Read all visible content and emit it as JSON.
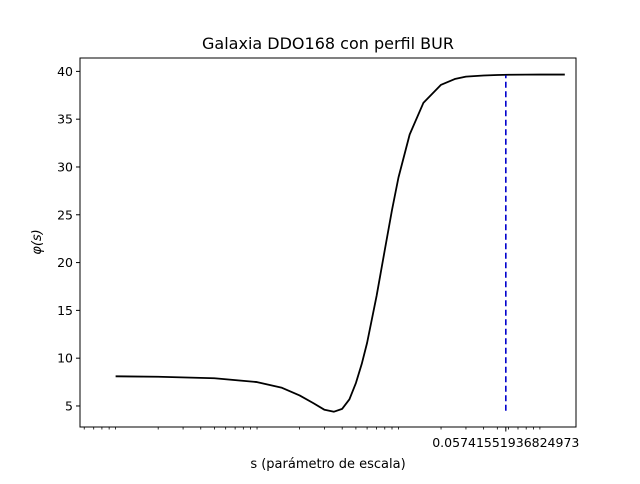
{
  "chart_data": {
    "type": "line",
    "title": "Galaxia DDO168 con perfil BUR",
    "xlabel": "s (parámetro de escala)",
    "ylabel": "φ(s)",
    "xscale": "log",
    "grid": false,
    "legend": "none",
    "xlim": [
      5.6e-05,
      0.18
    ],
    "ylim": [
      2.8,
      41.4
    ],
    "yticks": [
      5,
      10,
      15,
      20,
      25,
      30,
      35,
      40
    ],
    "xtick_labels": [
      {
        "value": 0.05741551936824973,
        "label": "0.05741551936824973"
      }
    ],
    "series": [
      {
        "color": "#000000",
        "style": "solid",
        "x": [
          0.0001,
          0.0002,
          0.0005,
          0.001,
          0.0015,
          0.002,
          0.0025,
          0.003,
          0.0035,
          0.004,
          0.0045,
          0.005,
          0.0055,
          0.006,
          0.007,
          0.008,
          0.009,
          0.01,
          0.012,
          0.015,
          0.02,
          0.025,
          0.03,
          0.04,
          0.05,
          0.06,
          0.08,
          0.1,
          0.15
        ],
        "y": [
          8.1,
          8.06,
          7.9,
          7.5,
          6.9,
          6.1,
          5.3,
          4.6,
          4.4,
          4.7,
          5.7,
          7.4,
          9.4,
          11.6,
          16.5,
          21.3,
          25.5,
          28.9,
          33.4,
          36.7,
          38.6,
          39.2,
          39.45,
          39.57,
          39.62,
          39.65,
          39.66,
          39.67,
          39.67
        ]
      }
    ],
    "vline": {
      "x": 0.05741551936824973,
      "y0": 4.5,
      "y1": 39.6,
      "color": "#0000cc",
      "style": "dashed"
    }
  }
}
